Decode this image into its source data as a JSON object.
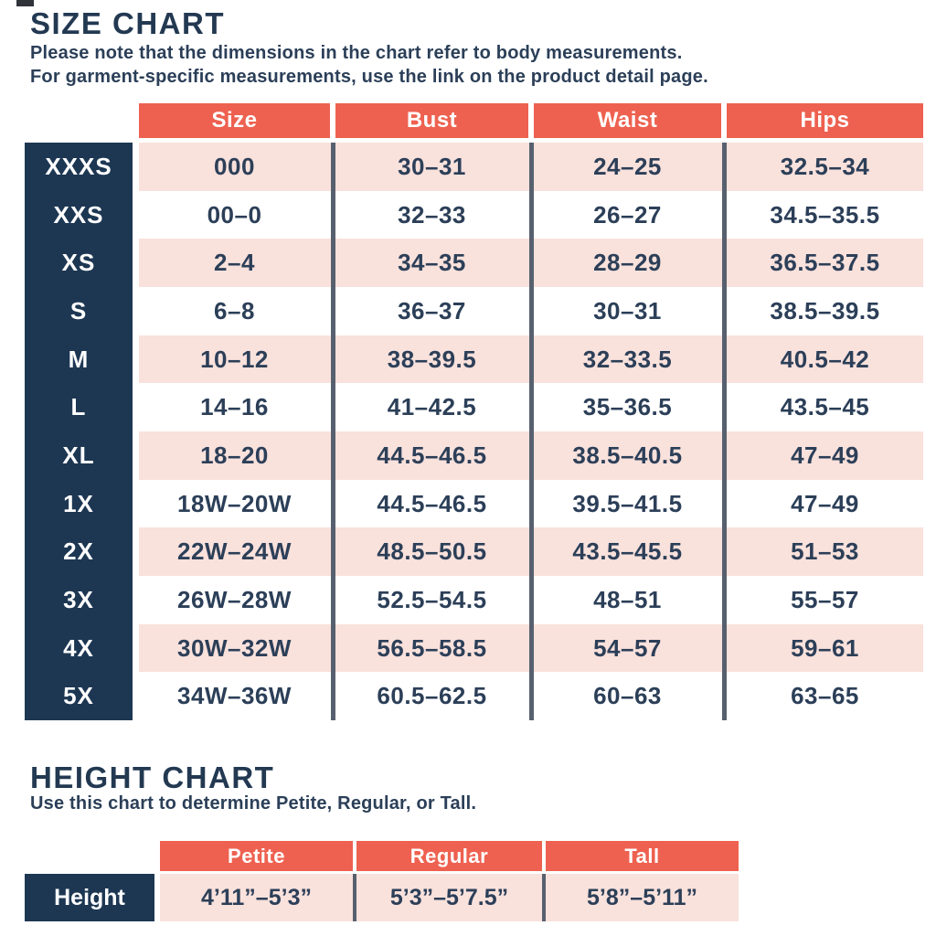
{
  "size_chart": {
    "title": "SIZE CHART",
    "subtitle_line1": "Please note that the dimensions in the chart refer to body measurements.",
    "subtitle_line2": "For garment-specific measurements, use the link on the product detail page.",
    "columns": [
      "Size",
      "Bust",
      "Waist",
      "Hips"
    ],
    "rows": [
      {
        "label": "XXXS",
        "size": "000",
        "bust": "30–31",
        "waist": "24–25",
        "hips": "32.5–34"
      },
      {
        "label": "XXS",
        "size": "00–0",
        "bust": "32–33",
        "waist": "26–27",
        "hips": "34.5–35.5"
      },
      {
        "label": "XS",
        "size": "2–4",
        "bust": "34–35",
        "waist": "28–29",
        "hips": "36.5–37.5"
      },
      {
        "label": "S",
        "size": "6–8",
        "bust": "36–37",
        "waist": "30–31",
        "hips": "38.5–39.5"
      },
      {
        "label": "M",
        "size": "10–12",
        "bust": "38–39.5",
        "waist": "32–33.5",
        "hips": "40.5–42"
      },
      {
        "label": "L",
        "size": "14–16",
        "bust": "41–42.5",
        "waist": "35–36.5",
        "hips": "43.5–45"
      },
      {
        "label": "XL",
        "size": "18–20",
        "bust": "44.5–46.5",
        "waist": "38.5–40.5",
        "hips": "47–49"
      },
      {
        "label": "1X",
        "size": "18W–20W",
        "bust": "44.5–46.5",
        "waist": "39.5–41.5",
        "hips": "47–49"
      },
      {
        "label": "2X",
        "size": "22W–24W",
        "bust": "48.5–50.5",
        "waist": "43.5–45.5",
        "hips": "51–53"
      },
      {
        "label": "3X",
        "size": "26W–28W",
        "bust": "52.5–54.5",
        "waist": "48–51",
        "hips": "55–57"
      },
      {
        "label": "4X",
        "size": "30W–32W",
        "bust": "56.5–58.5",
        "waist": "54–57",
        "hips": "59–61"
      },
      {
        "label": "5X",
        "size": "34W–36W",
        "bust": "60.5–62.5",
        "waist": "60–63",
        "hips": "63–65"
      }
    ]
  },
  "height_chart": {
    "title": "HEIGHT CHART",
    "subtitle": "Use this chart to determine Petite, Regular, or Tall.",
    "columns": [
      "Petite",
      "Regular",
      "Tall"
    ],
    "row_label": "Height",
    "values": [
      "4’11”–5’3”",
      "5’3”–5’7.5”",
      "5’8”–5’11”"
    ]
  },
  "colors": {
    "header_coral": "#ee6150",
    "row_pink": "#f9e1dc",
    "navy": "#1d3753",
    "text_navy": "#2c3f58",
    "divider_slate": "#57606e"
  }
}
